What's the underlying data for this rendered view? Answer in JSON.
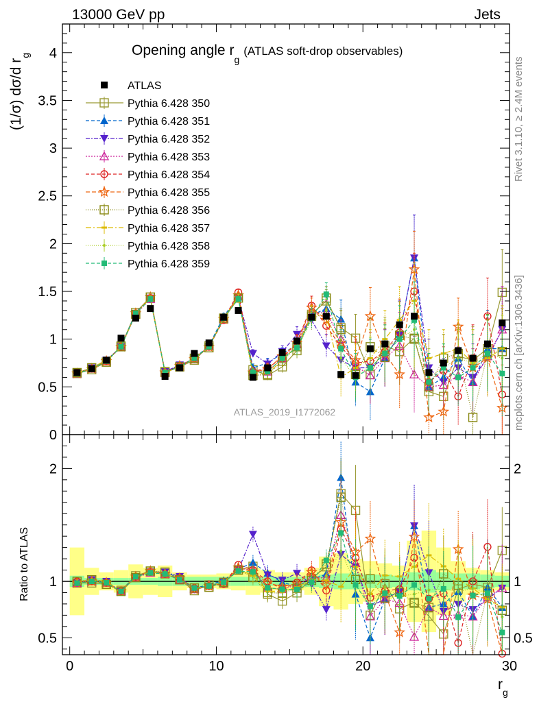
{
  "header": {
    "left": "13000 GeV pp",
    "right": "Jets"
  },
  "side_text": {
    "rivet": "Rivet 3.1.10, ≥ 2.4M events",
    "mcplots": "mcplots.cern.ch [arXiv:1306.3436]"
  },
  "chart_data": {
    "type": "scatter",
    "title": "Opening angle r",
    "title_sub": "g",
    "title_note": "(ATLAS soft-drop observables)",
    "analysis_label": "ATLAS_2019_I1772062",
    "xlabel": "r",
    "xlabel_sub": "g",
    "ylabel_main": "(1/σ) dσ/d r",
    "ylabel_main_sub": "g",
    "ylabel_ratio": "Ratio to ATLAS",
    "xlim": [
      -0.5,
      30
    ],
    "ylim_main": [
      0,
      4.3
    ],
    "ylim_ratio": [
      0.35,
      2.3
    ],
    "x_ticks": [
      "0",
      "10",
      "20",
      "30"
    ],
    "y_ticks_main": [
      "0",
      "0.5",
      "1",
      "1.5",
      "2",
      "2.5",
      "3",
      "3.5",
      "4"
    ],
    "y_ticks_ratio": [
      "0.5",
      "1",
      "2"
    ],
    "reference": {
      "name": "ATLAS",
      "color": "#000000",
      "x": [
        0.5,
        1.5,
        2.5,
        3.5,
        4.5,
        5.5,
        6.5,
        7.5,
        8.5,
        9.5,
        10.5,
        11.5,
        12.5,
        13.5,
        14.5,
        15.5,
        16.5,
        17.5,
        18.5,
        19.5,
        20.5,
        21.5,
        22.5,
        23.5,
        24.5,
        25.5,
        26.5,
        27.5,
        28.5,
        29.5
      ],
      "y": [
        0.65,
        0.69,
        0.78,
        1.01,
        1.22,
        1.32,
        0.61,
        0.7,
        0.85,
        0.96,
        1.23,
        1.3,
        0.6,
        0.7,
        0.86,
        0.98,
        1.23,
        1.24,
        0.63,
        0.62,
        0.9,
        0.95,
        1.15,
        1.24,
        0.65,
        0.75,
        0.88,
        0.8,
        0.95,
        1.17
      ]
    },
    "ratio_bands": {
      "stat_half_width": [
        0.05,
        0.03,
        0.03,
        0.03,
        0.03,
        0.03,
        0.04,
        0.04,
        0.04,
        0.04,
        0.04,
        0.04,
        0.04,
        0.04,
        0.04,
        0.04,
        0.05,
        0.06,
        0.07,
        0.07,
        0.06,
        0.06,
        0.05,
        0.08,
        0.1,
        0.08,
        0.07,
        0.07,
        0.06,
        0.05
      ],
      "total_half_width": [
        0.3,
        0.12,
        0.08,
        0.1,
        0.15,
        0.12,
        0.14,
        0.08,
        0.06,
        0.06,
        0.07,
        0.08,
        0.12,
        0.1,
        0.08,
        0.08,
        0.12,
        0.22,
        0.25,
        0.2,
        0.18,
        0.16,
        0.14,
        0.36,
        0.45,
        0.3,
        0.18,
        0.12,
        0.1,
        0.08
      ]
    },
    "series": [
      {
        "name": "Pythia 6.428 350",
        "color": "#999933",
        "marker": "open-square",
        "dash": "",
        "y": [
          0.64,
          0.68,
          0.76,
          0.93,
          1.28,
          1.44,
          0.65,
          0.71,
          0.78,
          0.93,
          1.21,
          1.43,
          0.68,
          0.62,
          0.71,
          0.88,
          1.26,
          1.4,
          1.12,
          1.01,
          0.63,
          0.93,
          0.87,
          1.01,
          0.45,
          0.4,
          0.82,
          0.78,
          0.9,
          1.49
        ],
        "err": [
          0.01,
          0.01,
          0.01,
          0.02,
          0.02,
          0.02,
          0.02,
          0.02,
          0.02,
          0.02,
          0.03,
          0.03,
          0.04,
          0.05,
          0.06,
          0.08,
          0.1,
          0.12,
          0.2,
          0.25,
          0.3,
          0.3,
          0.35,
          0.4,
          0.3,
          0.25,
          0.3,
          0.35,
          0.4,
          0.45
        ]
      },
      {
        "name": "Pythia 6.428 351",
        "color": "#0066cc",
        "marker": "filled-triangle-up",
        "dash": "5,3",
        "y": [
          0.64,
          0.7,
          0.77,
          0.92,
          1.28,
          1.43,
          0.66,
          0.72,
          0.8,
          0.93,
          1.24,
          1.44,
          0.7,
          0.75,
          0.85,
          0.94,
          1.25,
          1.32,
          1.21,
          0.55,
          0.45,
          0.8,
          1.05,
          1.85,
          0.5,
          0.6,
          0.8,
          0.55,
          0.9,
          0.9
        ],
        "err": [
          0.01,
          0.01,
          0.01,
          0.02,
          0.02,
          0.02,
          0.02,
          0.02,
          0.02,
          0.02,
          0.03,
          0.03,
          0.04,
          0.05,
          0.06,
          0.08,
          0.1,
          0.12,
          0.2,
          0.25,
          0.3,
          0.3,
          0.35,
          0.45,
          0.3,
          0.25,
          0.3,
          0.35,
          0.4,
          0.45
        ]
      },
      {
        "name": "Pythia 6.428 352",
        "color": "#5522cc",
        "marker": "filled-triangle-down",
        "dash": "6,2,2,2",
        "y": [
          0.64,
          0.7,
          0.78,
          0.92,
          1.27,
          1.43,
          0.66,
          0.73,
          0.79,
          0.92,
          1.22,
          1.43,
          0.85,
          0.74,
          0.87,
          1.05,
          1.2,
          0.93,
          0.78,
          0.7,
          0.7,
          0.8,
          1.05,
          1.85,
          0.7,
          0.55,
          0.7,
          0.6,
          0.8,
          1.1
        ],
        "err": [
          0.01,
          0.01,
          0.01,
          0.02,
          0.02,
          0.02,
          0.02,
          0.02,
          0.02,
          0.02,
          0.03,
          0.03,
          0.04,
          0.05,
          0.06,
          0.08,
          0.1,
          0.12,
          0.2,
          0.25,
          0.3,
          0.3,
          0.35,
          0.45,
          0.3,
          0.25,
          0.3,
          0.35,
          0.4,
          0.45
        ]
      },
      {
        "name": "Pythia 6.428 353",
        "color": "#cc2299",
        "marker": "open-triangle-up",
        "dash": "2,2",
        "y": [
          0.64,
          0.69,
          0.77,
          0.92,
          1.26,
          1.42,
          0.65,
          0.71,
          0.79,
          0.93,
          1.21,
          1.45,
          0.66,
          0.66,
          0.8,
          0.95,
          1.27,
          1.28,
          1.0,
          0.72,
          0.62,
          0.8,
          0.93,
          0.63,
          0.5,
          0.52,
          0.62,
          0.55,
          0.82,
          1.1
        ],
        "err": [
          0.01,
          0.01,
          0.01,
          0.02,
          0.02,
          0.02,
          0.02,
          0.02,
          0.02,
          0.02,
          0.03,
          0.03,
          0.04,
          0.05,
          0.06,
          0.08,
          0.1,
          0.12,
          0.2,
          0.25,
          0.3,
          0.3,
          0.35,
          0.4,
          0.3,
          0.25,
          0.3,
          0.35,
          0.4,
          0.45
        ]
      },
      {
        "name": "Pythia 6.428 354",
        "color": "#dd2222",
        "marker": "open-circle",
        "dash": "5,3",
        "y": [
          0.65,
          0.69,
          0.77,
          0.92,
          1.27,
          1.43,
          0.65,
          0.72,
          0.8,
          0.92,
          1.2,
          1.49,
          0.66,
          0.7,
          0.8,
          0.97,
          1.35,
          1.14,
          0.92,
          0.75,
          0.77,
          0.87,
          1.07,
          1.5,
          0.55,
          0.67,
          0.4,
          0.8,
          1.24,
          0.42
        ],
        "err": [
          0.01,
          0.01,
          0.01,
          0.02,
          0.02,
          0.02,
          0.02,
          0.02,
          0.02,
          0.02,
          0.03,
          0.03,
          0.04,
          0.05,
          0.06,
          0.08,
          0.1,
          0.12,
          0.2,
          0.25,
          0.3,
          0.3,
          0.35,
          0.4,
          0.3,
          0.25,
          0.3,
          0.35,
          0.4,
          0.45
        ]
      },
      {
        "name": "Pythia 6.428 355",
        "color": "#ee6611",
        "marker": "open-star",
        "dash": "6,3",
        "y": [
          0.64,
          0.69,
          0.77,
          0.92,
          1.27,
          1.44,
          0.65,
          0.72,
          0.79,
          0.92,
          1.21,
          1.46,
          0.65,
          0.69,
          0.82,
          0.96,
          1.33,
          1.2,
          0.96,
          0.78,
          1.24,
          0.85,
          0.63,
          1.73,
          0.18,
          0.24,
          1.13,
          0.7,
          0.8,
          0.28
        ],
        "err": [
          0.01,
          0.01,
          0.01,
          0.02,
          0.02,
          0.02,
          0.02,
          0.02,
          0.02,
          0.02,
          0.03,
          0.03,
          0.04,
          0.05,
          0.06,
          0.08,
          0.1,
          0.12,
          0.2,
          0.25,
          0.3,
          0.3,
          0.35,
          0.4,
          0.3,
          0.25,
          0.3,
          0.35,
          0.4,
          0.45
        ]
      },
      {
        "name": "Pythia 6.428 356",
        "color": "#888811",
        "marker": "open-square",
        "dash": "1,2",
        "y": [
          0.65,
          0.7,
          0.76,
          0.92,
          1.26,
          1.44,
          0.66,
          0.71,
          0.8,
          0.91,
          1.22,
          1.43,
          0.62,
          0.63,
          0.77,
          0.92,
          1.24,
          1.43,
          1.1,
          0.63,
          0.92,
          0.81,
          1.04,
          1.0,
          0.5,
          0.8,
          0.85,
          0.18,
          0.86,
          0.87
        ],
        "err": [
          0.01,
          0.01,
          0.01,
          0.02,
          0.02,
          0.02,
          0.02,
          0.02,
          0.02,
          0.02,
          0.03,
          0.03,
          0.04,
          0.05,
          0.06,
          0.08,
          0.1,
          0.12,
          0.2,
          0.25,
          0.3,
          0.3,
          0.35,
          0.4,
          0.3,
          0.25,
          0.3,
          0.35,
          0.4,
          0.45
        ]
      },
      {
        "name": "Pythia 6.428 357",
        "color": "#ddbb00",
        "marker": "dash",
        "dash": "8,3,2,3",
        "y": [
          0.65,
          0.7,
          0.78,
          0.92,
          1.27,
          1.43,
          0.65,
          0.71,
          0.8,
          0.92,
          1.22,
          1.44,
          0.63,
          0.64,
          0.78,
          0.93,
          1.25,
          1.25,
          0.6,
          0.7,
          0.8,
          1.0,
          1.2,
          1.4,
          0.8,
          0.85,
          0.9,
          0.75,
          0.8,
          0.9
        ],
        "err": [
          0.01,
          0.01,
          0.01,
          0.02,
          0.02,
          0.02,
          0.02,
          0.02,
          0.02,
          0.02,
          0.03,
          0.03,
          0.04,
          0.05,
          0.06,
          0.08,
          0.1,
          0.12,
          0.2,
          0.25,
          0.3,
          0.3,
          0.35,
          0.4,
          0.3,
          0.25,
          0.3,
          0.35,
          0.4,
          0.45
        ]
      },
      {
        "name": "Pythia 6.428 358",
        "color": "#aacc22",
        "marker": "dot",
        "dash": "1,2",
        "y": [
          0.64,
          0.7,
          0.77,
          0.91,
          1.27,
          1.43,
          0.66,
          0.71,
          0.79,
          0.92,
          1.22,
          1.42,
          0.64,
          0.66,
          0.8,
          0.9,
          1.2,
          1.3,
          0.8,
          0.6,
          0.72,
          0.9,
          1.0,
          1.1,
          0.6,
          0.7,
          0.8,
          0.75,
          0.85,
          0.8
        ],
        "err": [
          0.01,
          0.01,
          0.01,
          0.02,
          0.02,
          0.02,
          0.02,
          0.02,
          0.02,
          0.02,
          0.03,
          0.03,
          0.04,
          0.05,
          0.06,
          0.08,
          0.1,
          0.12,
          0.2,
          0.25,
          0.3,
          0.3,
          0.35,
          0.4,
          0.3,
          0.25,
          0.3,
          0.35,
          0.4,
          0.45
        ]
      },
      {
        "name": "Pythia 6.428 359",
        "color": "#22bb77",
        "marker": "filled-square",
        "dash": "5,3",
        "y": [
          0.64,
          0.69,
          0.77,
          0.92,
          1.27,
          1.42,
          0.65,
          0.71,
          0.8,
          0.92,
          1.22,
          1.42,
          0.65,
          0.66,
          0.8,
          0.91,
          1.22,
          1.47,
          0.9,
          0.6,
          0.7,
          0.85,
          1.0,
          1.2,
          0.55,
          0.7,
          0.6,
          0.7,
          0.85,
          0.64
        ],
        "err": [
          0.01,
          0.01,
          0.01,
          0.02,
          0.02,
          0.02,
          0.02,
          0.02,
          0.02,
          0.02,
          0.03,
          0.03,
          0.04,
          0.05,
          0.06,
          0.08,
          0.1,
          0.12,
          0.2,
          0.25,
          0.3,
          0.3,
          0.35,
          0.4,
          0.3,
          0.25,
          0.3,
          0.35,
          0.4,
          0.45
        ]
      }
    ]
  }
}
